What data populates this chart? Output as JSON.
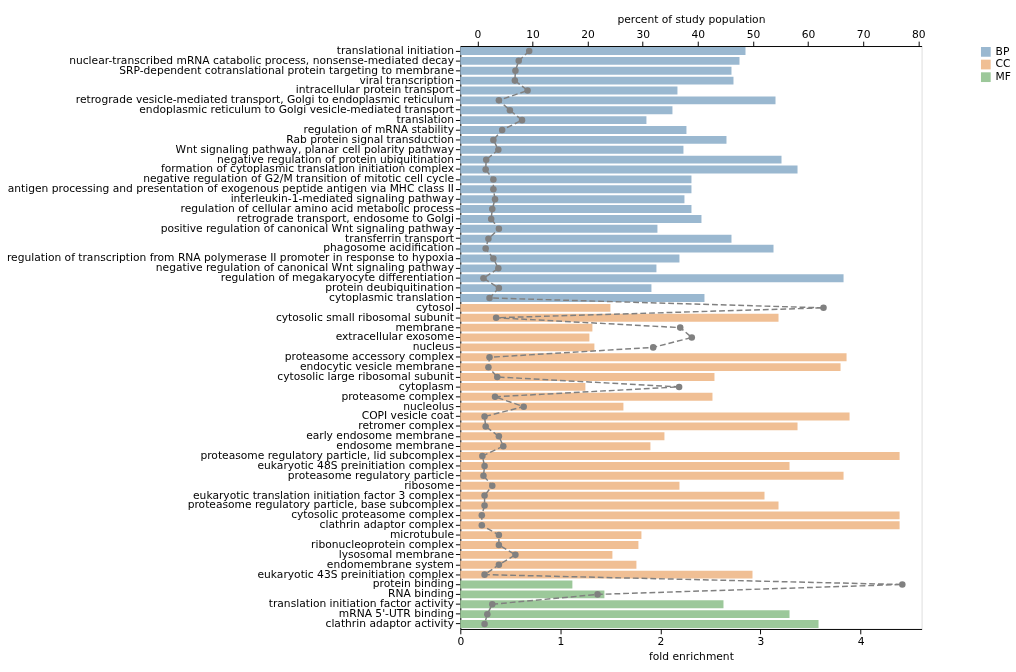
{
  "chart_data": {
    "type": "bar",
    "orientation": "horizontal",
    "xlabel": "fold enrichment",
    "x2label": "percent of study population",
    "xlim": [
      0,
      4.61
    ],
    "xticks": [
      0,
      1,
      2,
      3,
      4
    ],
    "x2lim": [
      -3.1,
      80.6
    ],
    "x2ticks": [
      0,
      10,
      20,
      30,
      40,
      50,
      60,
      70,
      80
    ],
    "grid": false,
    "legend": "top right",
    "categories": [
      "translational initiation",
      "nuclear-transcribed mRNA catabolic process, nonsense-mediated decay",
      "SRP-dependent cotranslational protein targeting to membrane",
      "viral transcription",
      "intracellular protein transport",
      "retrograde vesicle-mediated transport, Golgi to endoplasmic reticulum",
      "endoplasmic reticulum to Golgi vesicle-mediated transport",
      "translation",
      "regulation of mRNA stability",
      "Rab protein signal transduction",
      "Wnt signaling pathway, planar cell polarity pathway",
      "negative regulation of protein ubiquitination",
      "formation of cytoplasmic translation initiation complex",
      "negative regulation of G2/M transition of mitotic cell cycle",
      "antigen processing and presentation of exogenous peptide antigen via MHC class II",
      "interleukin-1-mediated signaling pathway",
      "regulation of cellular amino acid metabolic process",
      "retrograde transport, endosome to Golgi",
      "positive regulation of canonical Wnt signaling pathway",
      "transferrin transport",
      "phagosome acidification",
      "regulation of transcription from RNA polymerase II promoter in response to hypoxia",
      "negative regulation of canonical Wnt signaling pathway",
      "regulation of megakaryocyte differentiation",
      "protein deubiquitination",
      "cytoplasmic translation",
      "cytosol",
      "cytosolic small ribosomal subunit",
      "membrane",
      "extracellular exosome",
      "nucleus",
      "proteasome accessory complex",
      "endocytic vesicle membrane",
      "cytosolic large ribosomal subunit",
      "cytoplasm",
      "proteasome complex",
      "nucleolus",
      "COPI vesicle coat",
      "retromer complex",
      "early endosome membrane",
      "endosome membrane",
      "proteasome regulatory particle, lid subcomplex",
      "eukaryotic 48S preinitiation complex",
      "proteasome regulatory particle",
      "ribosome",
      "eukaryotic translation initiation factor 3 complex",
      "proteasome regulatory particle, base subcomplex",
      "cytosolic proteasome complex",
      "clathrin adaptor complex",
      "microtubule",
      "ribonucleoprotein complex",
      "lysosomal membrane",
      "endomembrane system",
      "eukaryotic 43S preinitiation complex",
      "protein binding",
      "RNA binding",
      "translation initiation factor activity",
      "mRNA 5'-UTR binding",
      "clathrin adaptor activity"
    ],
    "series": [
      {
        "name": "BP",
        "color": "#9ab8d0",
        "values": [
          2.85,
          2.79,
          2.71,
          2.73,
          2.17,
          3.15,
          2.12,
          1.86,
          2.26,
          2.66,
          2.23,
          3.21,
          3.37,
          2.31,
          2.31,
          2.24,
          2.31,
          2.41,
          1.97,
          2.71,
          3.13,
          2.19,
          1.96,
          3.83,
          1.91,
          2.44,
          null,
          null,
          null,
          null,
          null,
          null,
          null,
          null,
          null,
          null,
          null,
          null,
          null,
          null,
          null,
          null,
          null,
          null,
          null,
          null,
          null,
          null,
          null,
          null,
          null,
          null,
          null,
          null,
          null,
          null,
          null,
          null,
          null
        ]
      },
      {
        "name": "CC",
        "color": "#f0bf94",
        "values": [
          null,
          null,
          null,
          null,
          null,
          null,
          null,
          null,
          null,
          null,
          null,
          null,
          null,
          null,
          null,
          null,
          null,
          null,
          null,
          null,
          null,
          null,
          null,
          null,
          null,
          null,
          1.5,
          3.18,
          1.32,
          1.29,
          1.34,
          3.86,
          3.8,
          2.54,
          1.25,
          2.52,
          1.63,
          3.89,
          3.37,
          2.04,
          1.9,
          4.39,
          3.29,
          3.83,
          2.19,
          3.04,
          3.18,
          4.39,
          4.39,
          1.81,
          1.78,
          1.52,
          1.76,
          2.92,
          null,
          null,
          null,
          null,
          null
        ]
      },
      {
        "name": "MF",
        "color": "#9cc89a",
        "values": [
          null,
          null,
          null,
          null,
          null,
          null,
          null,
          null,
          null,
          null,
          null,
          null,
          null,
          null,
          null,
          null,
          null,
          null,
          null,
          null,
          null,
          null,
          null,
          null,
          null,
          null,
          null,
          null,
          null,
          null,
          null,
          null,
          null,
          null,
          null,
          null,
          null,
          null,
          null,
          null,
          null,
          null,
          null,
          null,
          null,
          null,
          null,
          null,
          null,
          null,
          null,
          null,
          null,
          null,
          1.12,
          1.44,
          2.63,
          3.29,
          3.58
        ]
      },
      {
        "type": "line",
        "axis": "x2",
        "color": "#808080",
        "marker": "circle",
        "line_style": "dashed",
        "values": [
          9.4,
          7.5,
          6.9,
          6.8,
          9.1,
          3.9,
          5.9,
          8.1,
          4.5,
          2.9,
          3.8,
          1.6,
          1.5,
          2.9,
          2.9,
          3.2,
          2.7,
          2.5,
          3.9,
          2.0,
          1.5,
          2.9,
          3.8,
          1.1,
          3.9,
          2.2,
          62.8,
          3.4,
          36.8,
          38.9,
          31.9,
          2.2,
          2.0,
          3.6,
          36.6,
          3.2,
          8.4,
          1.3,
          1.5,
          3.9,
          4.7,
          0.9,
          1.3,
          1.1,
          2.7,
          1.3,
          1.3,
          0.8,
          0.8,
          3.9,
          3.9,
          6.9,
          3.9,
          1.3,
          77.1,
          21.8,
          2.7,
          1.8,
          1.3
        ]
      }
    ]
  }
}
